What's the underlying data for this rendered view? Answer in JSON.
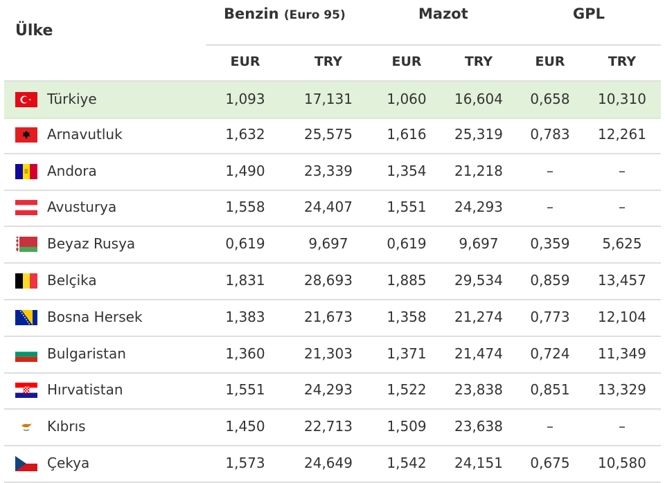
{
  "header": {
    "country": "Ülke",
    "groups": [
      {
        "label": "Benzin",
        "sub": "(Euro 95)"
      },
      {
        "label": "Mazot",
        "sub": ""
      },
      {
        "label": "GPL",
        "sub": ""
      }
    ],
    "currencies": [
      "EUR",
      "TRY",
      "EUR",
      "TRY",
      "EUR",
      "TRY"
    ]
  },
  "rows": [
    {
      "country": "Türkiye",
      "flag": "turkey-flag-icon",
      "values": [
        "1,093",
        "17,131",
        "1,060",
        "16,604",
        "0,658",
        "10,310"
      ],
      "highlight": true
    },
    {
      "country": "Arnavutluk",
      "flag": "albania-flag-icon",
      "values": [
        "1,632",
        "25,575",
        "1,616",
        "25,319",
        "0,783",
        "12,261"
      ]
    },
    {
      "country": "Andora",
      "flag": "andorra-flag-icon",
      "values": [
        "1,490",
        "23,339",
        "1,354",
        "21,218",
        "–",
        "–"
      ]
    },
    {
      "country": "Avusturya",
      "flag": "austria-flag-icon",
      "values": [
        "1,558",
        "24,407",
        "1,551",
        "24,293",
        "–",
        "–"
      ]
    },
    {
      "country": "Beyaz Rusya",
      "flag": "belarus-flag-icon",
      "values": [
        "0,619",
        "9,697",
        "0,619",
        "9,697",
        "0,359",
        "5,625"
      ]
    },
    {
      "country": "Belçika",
      "flag": "belgium-flag-icon",
      "values": [
        "1,831",
        "28,693",
        "1,885",
        "29,534",
        "0,859",
        "13,457"
      ]
    },
    {
      "country": "Bosna Hersek",
      "flag": "bosnia-flag-icon",
      "values": [
        "1,383",
        "21,673",
        "1,358",
        "21,274",
        "0,773",
        "12,104"
      ]
    },
    {
      "country": "Bulgaristan",
      "flag": "bulgaria-flag-icon",
      "values": [
        "1,360",
        "21,303",
        "1,371",
        "21,474",
        "0,724",
        "11,349"
      ]
    },
    {
      "country": "Hırvatistan",
      "flag": "croatia-flag-icon",
      "values": [
        "1,551",
        "24,293",
        "1,522",
        "23,838",
        "0,851",
        "13,329"
      ]
    },
    {
      "country": "Kıbrıs",
      "flag": "cyprus-flag-icon",
      "values": [
        "1,450",
        "22,713",
        "1,509",
        "23,638",
        "–",
        "–"
      ]
    },
    {
      "country": "Çekya",
      "flag": "czechia-flag-icon",
      "values": [
        "1,573",
        "24,649",
        "1,542",
        "24,151",
        "0,675",
        "10,580"
      ]
    }
  ],
  "colors": {
    "highlight_row": "#e2f1d9",
    "divider": "#dedede",
    "text": "#333333"
  }
}
